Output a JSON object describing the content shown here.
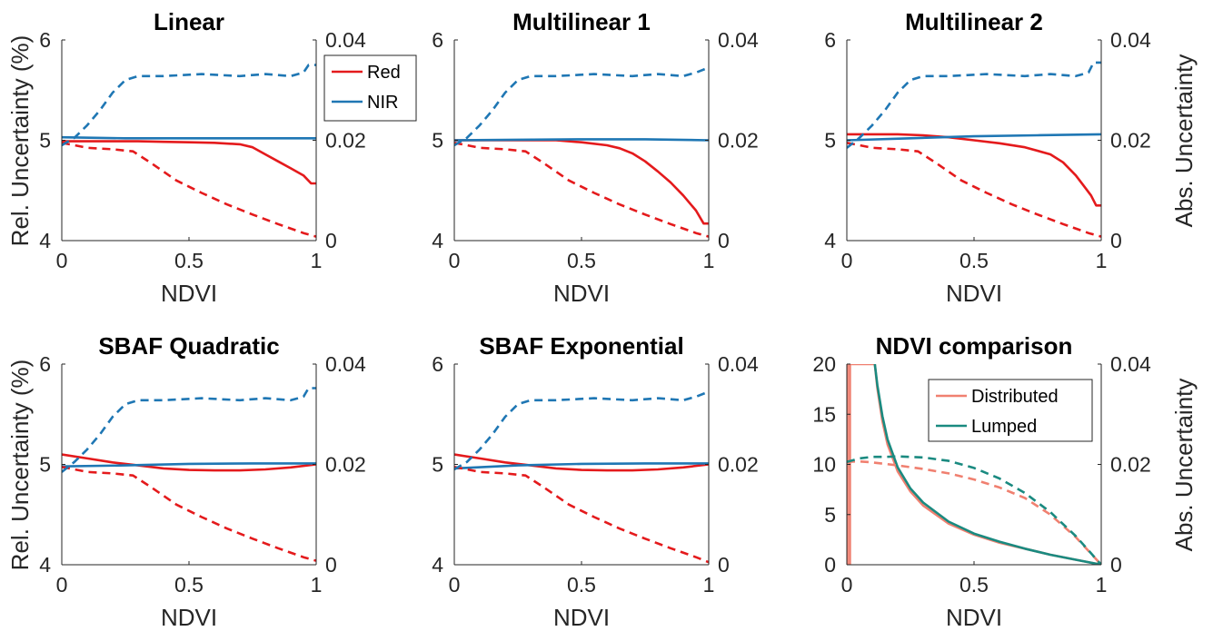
{
  "figure": {
    "ylabel_left": "Rel. Uncertainty (%)",
    "ylabel_right": "Abs. Uncertainty"
  },
  "colors": {
    "red": "#e41a1c",
    "nir": "#1f77b4",
    "distributed": "#f08070",
    "lumped": "#1a8a80"
  },
  "chart_data": [
    {
      "type": "line",
      "title": "Linear",
      "xlabel": "NDVI",
      "xlim": [
        0,
        1
      ],
      "xticks": [
        "0",
        "0.5",
        "1"
      ],
      "ylim_left": [
        4,
        6
      ],
      "yticks_left": [
        "4",
        "5",
        "6"
      ],
      "ylim_right": [
        0,
        0.04
      ],
      "yticks_right": [
        "0",
        "0.02",
        "0.04"
      ],
      "legend": {
        "placement": "outside-top-right",
        "entries": [
          "Red",
          "NIR"
        ]
      },
      "series": [
        {
          "name": "Red",
          "axis": "left",
          "style": "solid",
          "color": "red",
          "x": [
            0,
            0.1,
            0.2,
            0.3,
            0.4,
            0.5,
            0.6,
            0.7,
            0.75,
            0.8,
            0.85,
            0.9,
            0.95,
            0.98,
            1.0
          ],
          "y": [
            4.99,
            4.99,
            4.99,
            4.99,
            4.985,
            4.98,
            4.975,
            4.96,
            4.93,
            4.86,
            4.79,
            4.72,
            4.65,
            4.57,
            4.57
          ]
        },
        {
          "name": "NIR",
          "axis": "left",
          "style": "solid",
          "color": "nir",
          "x": [
            0,
            0.25,
            0.5,
            0.75,
            1.0
          ],
          "y": [
            5.03,
            5.02,
            5.02,
            5.02,
            5.02
          ]
        },
        {
          "name": "Red",
          "axis": "right",
          "style": "dashed",
          "color": "red",
          "x": [
            0,
            0.05,
            0.1,
            0.2,
            0.28,
            0.35,
            0.45,
            0.55,
            0.65,
            0.75,
            0.85,
            0.95,
            1.0
          ],
          "y": [
            0.0195,
            0.019,
            0.0185,
            0.0182,
            0.0178,
            0.0155,
            0.012,
            0.0095,
            0.0072,
            0.0052,
            0.0033,
            0.0015,
            0.0008
          ]
        },
        {
          "name": "NIR",
          "axis": "right",
          "style": "dashed",
          "color": "nir",
          "x": [
            0,
            0.05,
            0.1,
            0.15,
            0.2,
            0.25,
            0.3,
            0.4,
            0.55,
            0.7,
            0.8,
            0.9,
            0.95,
            0.97,
            1.0
          ],
          "y": [
            0.019,
            0.0205,
            0.023,
            0.026,
            0.0295,
            0.032,
            0.0328,
            0.0328,
            0.0332,
            0.0328,
            0.0332,
            0.0328,
            0.0335,
            0.035,
            0.035
          ]
        }
      ]
    },
    {
      "type": "line",
      "title": "Multilinear 1",
      "xlabel": "NDVI",
      "xlim": [
        0,
        1
      ],
      "xticks": [
        "0",
        "0.5",
        "1"
      ],
      "ylim_left": [
        4,
        6
      ],
      "yticks_left": [
        "4",
        "5",
        "6"
      ],
      "ylim_right": [
        0,
        0.04
      ],
      "yticks_right": [
        "0",
        "0.02",
        "0.04"
      ],
      "series": [
        {
          "name": "Red",
          "axis": "left",
          "style": "solid",
          "color": "red",
          "x": [
            0,
            0.2,
            0.4,
            0.5,
            0.6,
            0.65,
            0.7,
            0.75,
            0.8,
            0.85,
            0.9,
            0.95,
            0.98,
            1.0
          ],
          "y": [
            5.0,
            5.0,
            5.0,
            4.98,
            4.95,
            4.92,
            4.87,
            4.79,
            4.69,
            4.58,
            4.45,
            4.3,
            4.17,
            4.17
          ]
        },
        {
          "name": "NIR",
          "axis": "left",
          "style": "solid",
          "color": "nir",
          "x": [
            0,
            0.25,
            0.5,
            0.75,
            1.0
          ],
          "y": [
            5.0,
            5.005,
            5.01,
            5.01,
            5.0
          ]
        },
        {
          "name": "Red",
          "axis": "right",
          "style": "dashed",
          "color": "red",
          "x": [
            0,
            0.05,
            0.1,
            0.2,
            0.28,
            0.35,
            0.45,
            0.55,
            0.65,
            0.75,
            0.85,
            0.95,
            1.0
          ],
          "y": [
            0.0195,
            0.019,
            0.0185,
            0.0182,
            0.0178,
            0.0155,
            0.012,
            0.0095,
            0.0072,
            0.0052,
            0.0033,
            0.0015,
            0.0008
          ]
        },
        {
          "name": "NIR",
          "axis": "right",
          "style": "dashed",
          "color": "nir",
          "x": [
            0,
            0.05,
            0.1,
            0.15,
            0.2,
            0.25,
            0.3,
            0.4,
            0.55,
            0.7,
            0.8,
            0.9,
            0.95,
            1.0
          ],
          "y": [
            0.019,
            0.0205,
            0.023,
            0.026,
            0.0295,
            0.032,
            0.0328,
            0.0328,
            0.0332,
            0.0328,
            0.0332,
            0.0328,
            0.0335,
            0.0345
          ]
        }
      ]
    },
    {
      "type": "line",
      "title": "Multilinear 2",
      "xlabel": "NDVI",
      "xlim": [
        0,
        1
      ],
      "xticks": [
        "0",
        "0.5",
        "1"
      ],
      "ylim_left": [
        4,
        6
      ],
      "yticks_left": [
        "4",
        "5",
        "6"
      ],
      "ylim_right": [
        0,
        0.04
      ],
      "yticks_right": [
        "0",
        "0.02",
        "0.04"
      ],
      "series": [
        {
          "name": "Red",
          "axis": "left",
          "style": "solid",
          "color": "red",
          "x": [
            0,
            0.1,
            0.2,
            0.3,
            0.4,
            0.5,
            0.6,
            0.7,
            0.8,
            0.85,
            0.9,
            0.93,
            0.96,
            0.98,
            1.0
          ],
          "y": [
            5.06,
            5.06,
            5.06,
            5.05,
            5.03,
            5.0,
            4.97,
            4.93,
            4.86,
            4.78,
            4.65,
            4.55,
            4.45,
            4.35,
            4.35
          ]
        },
        {
          "name": "NIR",
          "axis": "left",
          "style": "solid",
          "color": "nir",
          "x": [
            0,
            0.25,
            0.5,
            0.75,
            1.0
          ],
          "y": [
            5.0,
            5.02,
            5.04,
            5.05,
            5.06
          ]
        },
        {
          "name": "Red",
          "axis": "right",
          "style": "dashed",
          "color": "red",
          "x": [
            0,
            0.05,
            0.1,
            0.2,
            0.28,
            0.35,
            0.45,
            0.55,
            0.65,
            0.75,
            0.85,
            0.95,
            1.0
          ],
          "y": [
            0.0195,
            0.019,
            0.0185,
            0.0182,
            0.0178,
            0.0155,
            0.012,
            0.0095,
            0.0072,
            0.0052,
            0.0033,
            0.0015,
            0.0008
          ]
        },
        {
          "name": "NIR",
          "axis": "right",
          "style": "dashed",
          "color": "nir",
          "x": [
            0,
            0.05,
            0.1,
            0.15,
            0.2,
            0.25,
            0.3,
            0.4,
            0.55,
            0.7,
            0.8,
            0.9,
            0.95,
            0.97,
            1.0
          ],
          "y": [
            0.0185,
            0.0205,
            0.023,
            0.026,
            0.0295,
            0.032,
            0.0328,
            0.0328,
            0.0332,
            0.0328,
            0.0332,
            0.0328,
            0.0335,
            0.0355,
            0.0355
          ]
        }
      ]
    },
    {
      "type": "line",
      "title": "SBAF Quadratic",
      "xlabel": "NDVI",
      "xlim": [
        0,
        1
      ],
      "xticks": [
        "0",
        "0.5",
        "1"
      ],
      "ylim_left": [
        4,
        6
      ],
      "yticks_left": [
        "4",
        "5",
        "6"
      ],
      "ylim_right": [
        0,
        0.04
      ],
      "yticks_right": [
        "0",
        "0.02",
        "0.04"
      ],
      "series": [
        {
          "name": "Red",
          "axis": "left",
          "style": "solid",
          "color": "red",
          "x": [
            0,
            0.1,
            0.2,
            0.3,
            0.4,
            0.5,
            0.6,
            0.7,
            0.8,
            0.9,
            1.0
          ],
          "y": [
            5.1,
            5.06,
            5.02,
            4.99,
            4.96,
            4.945,
            4.94,
            4.94,
            4.95,
            4.97,
            5.0
          ]
        },
        {
          "name": "NIR",
          "axis": "left",
          "style": "solid",
          "color": "nir",
          "x": [
            0,
            0.25,
            0.5,
            0.75,
            1.0
          ],
          "y": [
            4.98,
            4.99,
            5.005,
            5.01,
            5.01
          ]
        },
        {
          "name": "Red",
          "axis": "right",
          "style": "dashed",
          "color": "red",
          "x": [
            0,
            0.05,
            0.1,
            0.2,
            0.28,
            0.35,
            0.45,
            0.55,
            0.65,
            0.75,
            0.85,
            0.95,
            1.0
          ],
          "y": [
            0.0195,
            0.019,
            0.0185,
            0.0182,
            0.0178,
            0.0155,
            0.012,
            0.0095,
            0.0072,
            0.0052,
            0.0033,
            0.0015,
            0.0008
          ]
        },
        {
          "name": "NIR",
          "axis": "right",
          "style": "dashed",
          "color": "nir",
          "x": [
            0,
            0.05,
            0.1,
            0.15,
            0.2,
            0.25,
            0.3,
            0.4,
            0.55,
            0.7,
            0.8,
            0.9,
            0.95,
            0.97,
            1.0
          ],
          "y": [
            0.0185,
            0.0205,
            0.023,
            0.026,
            0.0295,
            0.032,
            0.0328,
            0.0328,
            0.0332,
            0.0328,
            0.0332,
            0.0328,
            0.0335,
            0.0352,
            0.0352
          ]
        }
      ]
    },
    {
      "type": "line",
      "title": "SBAF Exponential",
      "xlabel": "NDVI",
      "xlim": [
        0,
        1
      ],
      "xticks": [
        "0",
        "0.5",
        "1"
      ],
      "ylim_left": [
        4,
        6
      ],
      "yticks_left": [
        "4",
        "5",
        "6"
      ],
      "ylim_right": [
        0,
        0.04
      ],
      "yticks_right": [
        "0",
        "0.02",
        "0.04"
      ],
      "series": [
        {
          "name": "Red",
          "axis": "left",
          "style": "solid",
          "color": "red",
          "x": [
            0,
            0.1,
            0.2,
            0.3,
            0.4,
            0.5,
            0.6,
            0.7,
            0.8,
            0.9,
            1.0
          ],
          "y": [
            5.1,
            5.06,
            5.02,
            4.99,
            4.96,
            4.945,
            4.94,
            4.94,
            4.95,
            4.97,
            5.0
          ]
        },
        {
          "name": "NIR",
          "axis": "left",
          "style": "solid",
          "color": "nir",
          "x": [
            0,
            0.25,
            0.5,
            0.75,
            1.0
          ],
          "y": [
            4.96,
            4.99,
            5.005,
            5.01,
            5.01
          ]
        },
        {
          "name": "Red",
          "axis": "right",
          "style": "dashed",
          "color": "red",
          "x": [
            0,
            0.05,
            0.1,
            0.2,
            0.28,
            0.35,
            0.45,
            0.55,
            0.65,
            0.75,
            0.85,
            0.95,
            1.0
          ],
          "y": [
            0.0195,
            0.019,
            0.0185,
            0.0182,
            0.0178,
            0.0155,
            0.012,
            0.0095,
            0.0072,
            0.0052,
            0.0033,
            0.0015,
            0.0005
          ]
        },
        {
          "name": "NIR",
          "axis": "right",
          "style": "dashed",
          "color": "nir",
          "x": [
            0,
            0.05,
            0.1,
            0.15,
            0.2,
            0.25,
            0.3,
            0.4,
            0.55,
            0.7,
            0.8,
            0.9,
            0.95,
            1.0
          ],
          "y": [
            0.019,
            0.0205,
            0.023,
            0.026,
            0.0295,
            0.032,
            0.0328,
            0.0328,
            0.0332,
            0.0328,
            0.0332,
            0.0328,
            0.0335,
            0.0345
          ]
        }
      ]
    },
    {
      "type": "line",
      "title": "NDVI comparison",
      "xlabel": "NDVI",
      "xlim": [
        0,
        1
      ],
      "xticks": [
        "0",
        "0.5",
        "1"
      ],
      "ylim_left": [
        0,
        20
      ],
      "yticks_left": [
        "0",
        "5",
        "10",
        "15",
        "20"
      ],
      "ylim_right": [
        0,
        0.04
      ],
      "yticks_right": [
        "0",
        "0.02",
        "0.04"
      ],
      "legend": {
        "placement": "top-right",
        "entries": [
          "Distributed",
          "Lumped"
        ]
      },
      "series": [
        {
          "name": "Distributed",
          "axis": "left",
          "style": "solid",
          "color": "distributed",
          "x": [
            0.002,
            0.002,
            0.012,
            0.012,
            0.11,
            0.12,
            0.14,
            0.16,
            0.2,
            0.25,
            0.3,
            0.4,
            0.5,
            0.6,
            0.7,
            0.8,
            0.9,
            1.0
          ],
          "y": [
            20,
            0,
            0,
            20,
            20,
            17.6,
            14.3,
            12.0,
            9.3,
            7.3,
            5.9,
            4.1,
            3.0,
            2.2,
            1.6,
            1.0,
            0.5,
            0
          ]
        },
        {
          "name": "Lumped",
          "axis": "left",
          "style": "solid",
          "color": "lumped",
          "x": [
            0.11,
            0.12,
            0.14,
            0.16,
            0.2,
            0.25,
            0.3,
            0.4,
            0.5,
            0.6,
            0.7,
            0.8,
            0.9,
            1.0
          ],
          "y": [
            20,
            17.9,
            14.8,
            12.5,
            9.7,
            7.6,
            6.2,
            4.3,
            3.1,
            2.3,
            1.6,
            1.0,
            0.5,
            0
          ]
        },
        {
          "name": "Distributed",
          "axis": "right",
          "style": "dashed",
          "color": "distributed",
          "x": [
            0,
            0.05,
            0.1,
            0.15,
            0.2,
            0.3,
            0.4,
            0.5,
            0.6,
            0.7,
            0.8,
            0.9,
            1.0
          ],
          "y": [
            0.0205,
            0.0206,
            0.0204,
            0.0201,
            0.0198,
            0.0191,
            0.0182,
            0.017,
            0.0154,
            0.0133,
            0.01,
            0.0055,
            0
          ]
        },
        {
          "name": "Lumped",
          "axis": "right",
          "style": "dashed",
          "color": "lumped",
          "x": [
            0,
            0.05,
            0.1,
            0.15,
            0.2,
            0.3,
            0.4,
            0.5,
            0.6,
            0.7,
            0.8,
            0.9,
            1.0
          ],
          "y": [
            0.0205,
            0.0212,
            0.0215,
            0.0215,
            0.0216,
            0.0214,
            0.0207,
            0.0193,
            0.0172,
            0.0143,
            0.0105,
            0.0057,
            0
          ]
        }
      ]
    }
  ]
}
